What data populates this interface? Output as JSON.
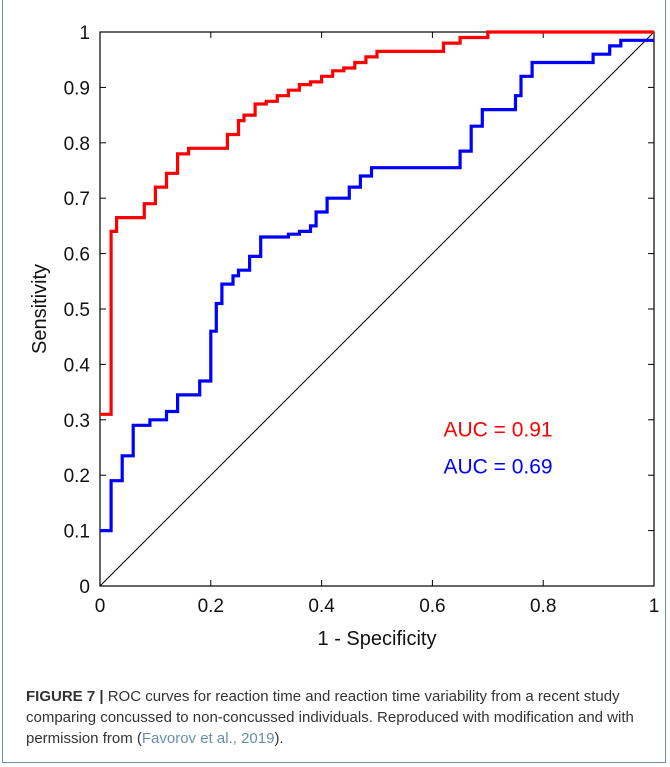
{
  "chart_data": {
    "type": "line",
    "xlabel": "1 - Specificity",
    "ylabel": "Sensitivity",
    "xlim": [
      0,
      1
    ],
    "ylim": [
      0,
      1
    ],
    "xticks": [
      "0",
      "0.2",
      "0.4",
      "0.6",
      "0.8",
      "1"
    ],
    "yticks": [
      "0",
      "0.1",
      "0.2",
      "0.3",
      "0.4",
      "0.5",
      "0.6",
      "0.7",
      "0.8",
      "0.9",
      "1"
    ],
    "grid": false,
    "diagonal_reference": true,
    "series": [
      {
        "color": "#ff0000",
        "annotation": "AUC = 0.91",
        "x": [
          0,
          0,
          0.02,
          0.02,
          0.03,
          0.03,
          0.06,
          0.06,
          0.08,
          0.08,
          0.1,
          0.1,
          0.12,
          0.12,
          0.14,
          0.14,
          0.16,
          0.16,
          0.23,
          0.23,
          0.25,
          0.25,
          0.26,
          0.26,
          0.28,
          0.28,
          0.3,
          0.3,
          0.32,
          0.32,
          0.34,
          0.34,
          0.36,
          0.36,
          0.38,
          0.38,
          0.4,
          0.4,
          0.42,
          0.42,
          0.44,
          0.44,
          0.46,
          0.46,
          0.48,
          0.48,
          0.5,
          0.5,
          0.52,
          0.52,
          0.62,
          0.62,
          0.65,
          0.65,
          0.7,
          0.7,
          0.72,
          0.72,
          1.0
        ],
        "y": [
          0.31,
          0.31,
          0.31,
          0.64,
          0.64,
          0.665,
          0.665,
          0.665,
          0.665,
          0.69,
          0.69,
          0.72,
          0.72,
          0.745,
          0.745,
          0.78,
          0.78,
          0.79,
          0.79,
          0.815,
          0.815,
          0.84,
          0.84,
          0.85,
          0.85,
          0.87,
          0.87,
          0.875,
          0.875,
          0.885,
          0.885,
          0.895,
          0.895,
          0.905,
          0.905,
          0.91,
          0.91,
          0.92,
          0.92,
          0.93,
          0.93,
          0.935,
          0.935,
          0.945,
          0.945,
          0.955,
          0.955,
          0.965,
          0.965,
          0.965,
          0.965,
          0.98,
          0.98,
          0.99,
          0.99,
          1.0,
          1.0,
          1.0,
          1.0
        ]
      },
      {
        "color": "#0000ff",
        "annotation": "AUC = 0.69",
        "x": [
          0,
          0,
          0.02,
          0.02,
          0.04,
          0.04,
          0.06,
          0.06,
          0.09,
          0.09,
          0.12,
          0.12,
          0.14,
          0.14,
          0.18,
          0.18,
          0.2,
          0.2,
          0.21,
          0.21,
          0.22,
          0.22,
          0.24,
          0.24,
          0.25,
          0.25,
          0.27,
          0.27,
          0.29,
          0.29,
          0.34,
          0.34,
          0.36,
          0.36,
          0.38,
          0.38,
          0.39,
          0.39,
          0.41,
          0.41,
          0.45,
          0.45,
          0.47,
          0.47,
          0.49,
          0.49,
          0.51,
          0.51,
          0.65,
          0.65,
          0.67,
          0.67,
          0.69,
          0.69,
          0.75,
          0.75,
          0.76,
          0.76,
          0.78,
          0.78,
          0.89,
          0.89,
          0.92,
          0.92,
          0.94,
          0.94,
          1.0
        ],
        "y": [
          0.1,
          0.1,
          0.1,
          0.19,
          0.19,
          0.235,
          0.235,
          0.29,
          0.29,
          0.3,
          0.3,
          0.315,
          0.315,
          0.345,
          0.345,
          0.37,
          0.37,
          0.46,
          0.46,
          0.51,
          0.51,
          0.545,
          0.545,
          0.56,
          0.56,
          0.57,
          0.57,
          0.595,
          0.595,
          0.63,
          0.63,
          0.635,
          0.635,
          0.64,
          0.64,
          0.65,
          0.65,
          0.675,
          0.675,
          0.7,
          0.7,
          0.72,
          0.72,
          0.74,
          0.74,
          0.755,
          0.755,
          0.755,
          0.755,
          0.785,
          0.785,
          0.83,
          0.83,
          0.86,
          0.86,
          0.885,
          0.885,
          0.92,
          0.92,
          0.945,
          0.945,
          0.96,
          0.96,
          0.975,
          0.975,
          0.985,
          0.985
        ]
      }
    ]
  },
  "caption": {
    "label": "FIGURE 7 |",
    "text": " ROC curves for reaction time and reaction time variability from a recent study comparing concussed to non-concussed individuals. Reproduced with modification and with permission from (",
    "citation": "Favorov et al., 2019",
    "end": ")."
  }
}
